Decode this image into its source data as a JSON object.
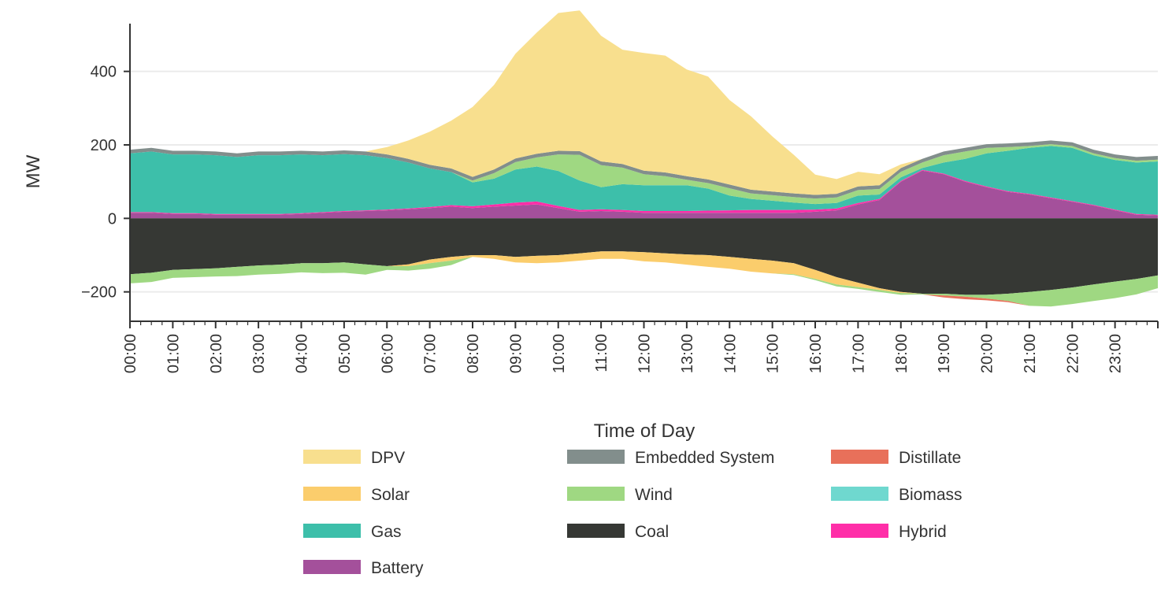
{
  "chart_data": {
    "type": "area",
    "title": "",
    "xlabel": "Time of Day",
    "ylabel": "MW",
    "ylim": [
      -280,
      530
    ],
    "y_ticks": [
      -200,
      0,
      200,
      400
    ],
    "y_tick_labels": [
      "−200",
      "0",
      "200",
      "400"
    ],
    "x_tick_labels": [
      "00:00",
      "01:00",
      "02:00",
      "03:00",
      "04:00",
      "05:00",
      "06:00",
      "07:00",
      "08:00",
      "09:00",
      "10:00",
      "11:00",
      "12:00",
      "13:00",
      "14:00",
      "15:00",
      "16:00",
      "17:00",
      "18:00",
      "19:00",
      "20:00",
      "21:00",
      "22:00",
      "23:00"
    ],
    "grid": "horizontal",
    "legend_position": "bottom",
    "x": [
      0,
      0.5,
      1,
      1.5,
      2,
      2.5,
      3,
      3.5,
      4,
      4.5,
      5,
      5.5,
      6,
      6.5,
      7,
      7.5,
      8,
      8.5,
      9,
      9.5,
      10,
      10.5,
      11,
      11.5,
      12,
      12.5,
      13,
      13.5,
      14,
      14.5,
      15,
      15.5,
      16,
      16.5,
      17,
      17.5,
      18,
      18.5,
      19,
      19.5,
      20,
      20.5,
      21,
      21.5,
      22,
      22.5,
      23,
      23.5,
      24
    ],
    "series": [
      {
        "name": "Battery",
        "color": "#A4509B",
        "side": "positive",
        "values": [
          15,
          15,
          12,
          12,
          10,
          10,
          10,
          10,
          12,
          15,
          18,
          20,
          22,
          25,
          28,
          32,
          28,
          32,
          35,
          38,
          28,
          18,
          20,
          18,
          15,
          15,
          15,
          15,
          15,
          15,
          15,
          15,
          18,
          22,
          38,
          50,
          100,
          130,
          120,
          100,
          85,
          72,
          65,
          55,
          45,
          35,
          22,
          10,
          8
        ]
      },
      {
        "name": "Hybrid",
        "color": "#FF2EA8",
        "side": "positive",
        "values": [
          2,
          2,
          2,
          2,
          2,
          2,
          2,
          2,
          2,
          2,
          2,
          2,
          2,
          2,
          3,
          4,
          5,
          6,
          8,
          8,
          6,
          5,
          5,
          5,
          5,
          5,
          5,
          6,
          7,
          8,
          8,
          8,
          6,
          5,
          4,
          3,
          2,
          2,
          2,
          2,
          2,
          2,
          2,
          2,
          2,
          2,
          2,
          2,
          2
        ]
      },
      {
        "name": "Gas",
        "color": "#3DBFAA",
        "side": "positive",
        "values": [
          160,
          165,
          160,
          160,
          160,
          155,
          160,
          160,
          160,
          155,
          155,
          150,
          140,
          125,
          105,
          90,
          65,
          70,
          90,
          95,
          95,
          80,
          60,
          70,
          70,
          70,
          70,
          60,
          40,
          30,
          25,
          20,
          15,
          15,
          20,
          12,
          10,
          5,
          30,
          60,
          90,
          110,
          125,
          140,
          145,
          135,
          135,
          140,
          145
        ]
      },
      {
        "name": "Biomass",
        "color": "#6FD8CF",
        "side": "positive",
        "values": [
          0,
          0,
          0,
          0,
          0,
          0,
          0,
          0,
          0,
          0,
          0,
          0,
          0,
          0,
          0,
          0,
          0,
          0,
          0,
          0,
          0,
          0,
          0,
          0,
          0,
          0,
          0,
          0,
          0,
          0,
          0,
          0,
          0,
          0,
          0,
          0,
          0,
          0,
          0,
          0,
          0,
          0,
          0,
          0,
          0,
          0,
          0,
          0,
          0
        ]
      },
      {
        "name": "Wind",
        "color": "#9FD882",
        "side": "positive",
        "values": [
          0,
          0,
          0,
          0,
          0,
          0,
          0,
          0,
          0,
          0,
          0,
          0,
          0,
          0,
          0,
          0,
          5,
          15,
          20,
          25,
          45,
          70,
          60,
          45,
          30,
          25,
          15,
          15,
          20,
          15,
          15,
          15,
          15,
          15,
          15,
          15,
          15,
          15,
          20,
          20,
          15,
          10,
          5,
          5,
          5,
          5,
          5,
          5,
          5
        ]
      },
      {
        "name": "Distillate",
        "color": "#E8705A",
        "side": "positive",
        "values": [
          0,
          0,
          0,
          0,
          0,
          0,
          0,
          0,
          0,
          0,
          0,
          0,
          0,
          0,
          0,
          0,
          0,
          0,
          0,
          0,
          0,
          0,
          0,
          0,
          0,
          0,
          0,
          0,
          0,
          0,
          0,
          0,
          0,
          0,
          0,
          0,
          0,
          0,
          0,
          0,
          0,
          0,
          0,
          0,
          0,
          0,
          0,
          0,
          0
        ]
      },
      {
        "name": "Embedded System",
        "color": "#828E8C",
        "side": "positive",
        "values": [
          10,
          10,
          10,
          10,
          10,
          10,
          10,
          10,
          10,
          10,
          10,
          10,
          10,
          10,
          10,
          10,
          10,
          10,
          10,
          10,
          10,
          10,
          10,
          10,
          10,
          10,
          10,
          10,
          10,
          10,
          10,
          10,
          10,
          10,
          10,
          10,
          10,
          10,
          10,
          10,
          10,
          10,
          10,
          10,
          10,
          10,
          10,
          10,
          10
        ]
      },
      {
        "name": "DPV",
        "color": "#F8DF8E",
        "side": "positive",
        "values": [
          0,
          0,
          0,
          0,
          0,
          0,
          0,
          0,
          0,
          0,
          0,
          0,
          20,
          50,
          90,
          130,
          190,
          230,
          285,
          330,
          375,
          383,
          342,
          311,
          320,
          318,
          290,
          280,
          230,
          200,
          150,
          105,
          55,
          40,
          40,
          30,
          10,
          0,
          0,
          0,
          0,
          0,
          0,
          0,
          0,
          0,
          0,
          0,
          0
        ]
      },
      {
        "name": "Coal",
        "color": "#363834",
        "side": "negative",
        "values": [
          -152,
          -148,
          -140,
          -138,
          -136,
          -132,
          -128,
          -126,
          -122,
          -122,
          -120,
          -125,
          -130,
          -125,
          -112,
          -105,
          -100,
          -100,
          -105,
          -102,
          -100,
          -95,
          -90,
          -90,
          -92,
          -95,
          -98,
          -100,
          -105,
          -110,
          -115,
          -122,
          -140,
          -160,
          -175,
          -190,
          -200,
          -205,
          -205,
          -208,
          -208,
          -205,
          -200,
          -195,
          -188,
          -180,
          -172,
          -165,
          -155
        ]
      },
      {
        "name": "Solar",
        "color": "#FBCD6C",
        "side": "negative",
        "values": [
          0,
          0,
          0,
          0,
          0,
          0,
          0,
          0,
          0,
          0,
          0,
          0,
          0,
          -5,
          -10,
          -10,
          -5,
          -10,
          -15,
          -20,
          -20,
          -20,
          -20,
          -20,
          -25,
          -25,
          -28,
          -32,
          -32,
          -35,
          -35,
          -30,
          -25,
          -20,
          -12,
          -5,
          -3,
          0,
          0,
          0,
          0,
          0,
          0,
          0,
          0,
          0,
          0,
          0,
          0
        ]
      },
      {
        "name": "Wind",
        "color": "#9FD882",
        "side": "negative",
        "values": [
          -25,
          -25,
          -22,
          -22,
          -22,
          -25,
          -25,
          -25,
          -25,
          -27,
          -28,
          -28,
          -10,
          -12,
          -15,
          -12,
          0,
          0,
          0,
          0,
          0,
          0,
          0,
          0,
          0,
          0,
          0,
          0,
          0,
          0,
          0,
          -2,
          -3,
          -5,
          -5,
          -5,
          -5,
          -2,
          -5,
          -5,
          -10,
          -20,
          -38,
          -45,
          -45,
          -45,
          -45,
          -42,
          -35
        ]
      },
      {
        "name": "Distillate",
        "color": "#E8705A",
        "side": "negative",
        "values": [
          0,
          0,
          0,
          0,
          0,
          0,
          0,
          0,
          0,
          0,
          0,
          0,
          0,
          0,
          0,
          0,
          0,
          0,
          0,
          0,
          0,
          0,
          0,
          0,
          0,
          0,
          0,
          0,
          0,
          0,
          0,
          0,
          0,
          0,
          0,
          0,
          0,
          0,
          -5,
          -7,
          -5,
          -3,
          0,
          0,
          0,
          0,
          0,
          0,
          0
        ]
      }
    ],
    "legend": [
      {
        "label": "DPV",
        "color": "#F8DF8E"
      },
      {
        "label": "Embedded System",
        "color": "#828E8C"
      },
      {
        "label": "Distillate",
        "color": "#E8705A"
      },
      {
        "label": "Solar",
        "color": "#FBCD6C"
      },
      {
        "label": "Wind",
        "color": "#9FD882"
      },
      {
        "label": "Biomass",
        "color": "#6FD8CF"
      },
      {
        "label": "Gas",
        "color": "#3DBFAA"
      },
      {
        "label": "Coal",
        "color": "#363834"
      },
      {
        "label": "Hybrid",
        "color": "#FF2EA8"
      },
      {
        "label": "Battery",
        "color": "#A4509B"
      }
    ]
  }
}
